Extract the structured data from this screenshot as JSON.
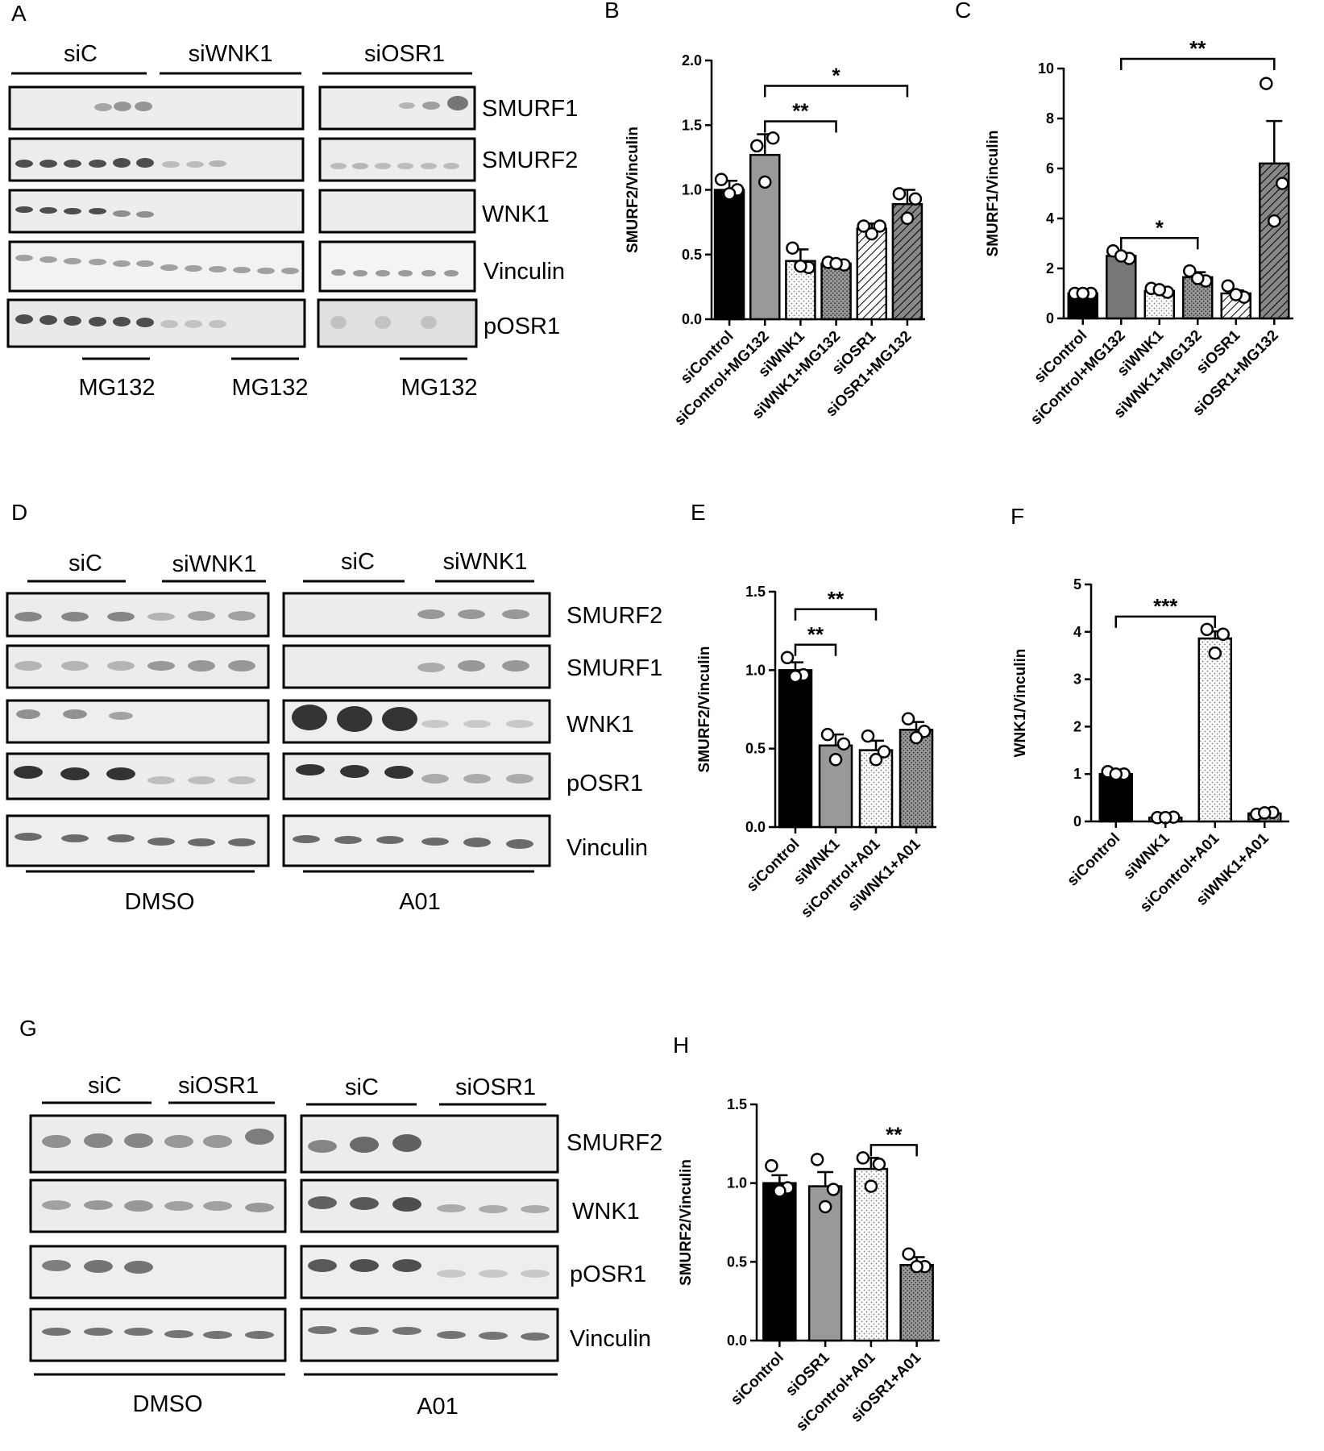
{
  "panel_letters": {
    "A": "A",
    "B": "B",
    "C": "C",
    "D": "D",
    "E": "E",
    "F": "F",
    "G": "G",
    "H": "H"
  },
  "blots": {
    "A": {
      "groups": [
        "siC",
        "siWNK1",
        "siOSR1"
      ],
      "bands": [
        "SMURF1",
        "SMURF2",
        "WNK1",
        "Vinculin",
        "pOSR1"
      ],
      "treatments": [
        "MG132",
        "MG132",
        "MG132"
      ]
    },
    "D": {
      "groups": [
        "siC",
        "siWNK1",
        "siC",
        "siWNK1"
      ],
      "bands": [
        "SMURF2",
        "SMURF1",
        "WNK1",
        "pOSR1",
        "Vinculin"
      ],
      "treatments": [
        "DMSO",
        "A01"
      ]
    },
    "G": {
      "groups": [
        "siC",
        "siOSR1",
        "siC",
        "siOSR1"
      ],
      "bands": [
        "SMURF2",
        "WNK1",
        "pOSR1",
        "Vinculin"
      ],
      "treatments": [
        "DMSO",
        "A01"
      ]
    }
  },
  "pattern_colors": {
    "black": "#000000",
    "gray_mid": "#999999",
    "gray_dark": "#777777",
    "white": "#ffffff"
  },
  "chart_data": [
    {
      "id": "B",
      "type": "bar",
      "categories": [
        "siControl",
        "siControl+MG132",
        "siWNK1",
        "siWNK1+MG132",
        "siOSR1",
        "siOSR1+MG132"
      ],
      "values": [
        1.0,
        1.27,
        0.45,
        0.43,
        0.7,
        0.89
      ],
      "errors": [
        0.07,
        0.16,
        0.09,
        0.03,
        0.04,
        0.11
      ],
      "points": [
        [
          1.08,
          1.0,
          0.97
        ],
        [
          1.34,
          1.4,
          1.06
        ],
        [
          0.55,
          0.4,
          0.41
        ],
        [
          0.44,
          0.42,
          0.43
        ],
        [
          0.72,
          0.72,
          0.66
        ],
        [
          0.97,
          0.93,
          0.78
        ]
      ],
      "fills": [
        "solid-black",
        "solid-gray",
        "dots-light",
        "dots-dark",
        "hatch-light",
        "hatch-dark"
      ],
      "ylabel": "SMURF2/Vinculin",
      "ylim": [
        0,
        2.0
      ],
      "yticks": [
        0.0,
        0.5,
        1.0,
        1.5,
        2.0
      ],
      "ytick_labels": [
        "0.0",
        "0.5",
        "1.0",
        "1.5",
        "2.0"
      ],
      "significance": [
        {
          "from": 1,
          "to": 3,
          "label": "**"
        },
        {
          "from": 1,
          "to": 5,
          "label": "*"
        }
      ]
    },
    {
      "id": "C",
      "type": "bar",
      "categories": [
        "siControl",
        "siControl+MG132",
        "siWNK1",
        "siWNK1+MG132",
        "siOSR1",
        "siOSR1+MG132"
      ],
      "values": [
        1.0,
        2.5,
        1.1,
        1.65,
        1.0,
        6.2
      ],
      "errors": [
        0.05,
        0.12,
        0.1,
        0.2,
        0.12,
        1.7
      ],
      "points": [
        [
          1.0,
          1.0,
          1.0
        ],
        [
          2.7,
          2.4,
          2.5
        ],
        [
          1.2,
          1.05,
          1.15
        ],
        [
          1.9,
          1.5,
          1.6
        ],
        [
          1.3,
          0.85,
          0.95
        ],
        [
          9.4,
          5.4,
          3.9
        ]
      ],
      "fills": [
        "solid-black",
        "solid-gray-dark",
        "dots-light",
        "dots-dark",
        "hatch-light",
        "hatch-dark"
      ],
      "ylabel": "SMURF1/Vinculin",
      "ylim": [
        0,
        10
      ],
      "yticks": [
        0,
        2,
        4,
        6,
        8,
        10
      ],
      "ytick_labels": [
        "0",
        "2",
        "4",
        "6",
        "8",
        "10"
      ],
      "significance": [
        {
          "from": 1,
          "to": 3,
          "label": "*"
        },
        {
          "from": 1,
          "to": 5,
          "label": "**"
        }
      ]
    },
    {
      "id": "E",
      "type": "bar",
      "categories": [
        "siControl",
        "siWNK1",
        "siControl+A01",
        "siWNK1+A01"
      ],
      "values": [
        1.0,
        0.52,
        0.49,
        0.62
      ],
      "errors": [
        0.05,
        0.07,
        0.06,
        0.05
      ],
      "points": [
        [
          1.08,
          0.97,
          0.96
        ],
        [
          0.59,
          0.53,
          0.43
        ],
        [
          0.58,
          0.48,
          0.43
        ],
        [
          0.69,
          0.61,
          0.57
        ]
      ],
      "fills": [
        "solid-black",
        "solid-gray",
        "dots-light",
        "dots-dark"
      ],
      "ylabel": "SMURF2/Vinculin",
      "ylim": [
        0,
        1.5
      ],
      "yticks": [
        0.0,
        0.5,
        1.0,
        1.5
      ],
      "ytick_labels": [
        "0.0",
        "0.5",
        "1.0",
        "1.5"
      ],
      "significance": [
        {
          "from": 0,
          "to": 1,
          "label": "**"
        },
        {
          "from": 0,
          "to": 2,
          "label": "**"
        }
      ]
    },
    {
      "id": "F",
      "type": "bar",
      "categories": [
        "siControl",
        "siWNK1",
        "siControl+A01",
        "siWNK1+A01"
      ],
      "values": [
        1.0,
        0.08,
        3.86,
        0.17
      ],
      "errors": [
        0.05,
        0.02,
        0.15,
        0.03
      ],
      "points": [
        [
          1.05,
          1.0,
          1.0
        ],
        [
          0.08,
          0.09,
          0.08
        ],
        [
          4.05,
          3.95,
          3.55
        ],
        [
          0.15,
          0.19,
          0.18
        ]
      ],
      "fills": [
        "solid-black",
        "solid-gray",
        "dots-light",
        "dots-dark"
      ],
      "ylabel": "WNK1/Vinculin",
      "ylim": [
        0,
        5
      ],
      "yticks": [
        0,
        1,
        2,
        3,
        4,
        5
      ],
      "ytick_labels": [
        "0",
        "1",
        "2",
        "3",
        "4",
        "5"
      ],
      "significance": [
        {
          "from": 0,
          "to": 2,
          "label": "***"
        }
      ]
    },
    {
      "id": "H",
      "type": "bar",
      "categories": [
        "siControl",
        "siOSR1",
        "siControl+A01",
        "siOSR1+A01"
      ],
      "values": [
        1.0,
        0.98,
        1.09,
        0.48
      ],
      "errors": [
        0.05,
        0.09,
        0.07,
        0.05
      ],
      "points": [
        [
          1.11,
          0.97,
          0.95
        ],
        [
          1.15,
          0.96,
          0.85
        ],
        [
          1.16,
          1.12,
          0.98
        ],
        [
          0.55,
          0.47,
          0.47
        ]
      ],
      "fills": [
        "solid-black",
        "solid-gray",
        "dots-light",
        "dots-dark"
      ],
      "ylabel": "SMURF2/Vinculin",
      "ylim": [
        0,
        1.5
      ],
      "yticks": [
        0.0,
        0.5,
        1.0,
        1.5
      ],
      "ytick_labels": [
        "0.0",
        "0.5",
        "1.0",
        "1.5"
      ],
      "significance": [
        {
          "from": 2,
          "to": 3,
          "label": "**"
        }
      ]
    }
  ]
}
